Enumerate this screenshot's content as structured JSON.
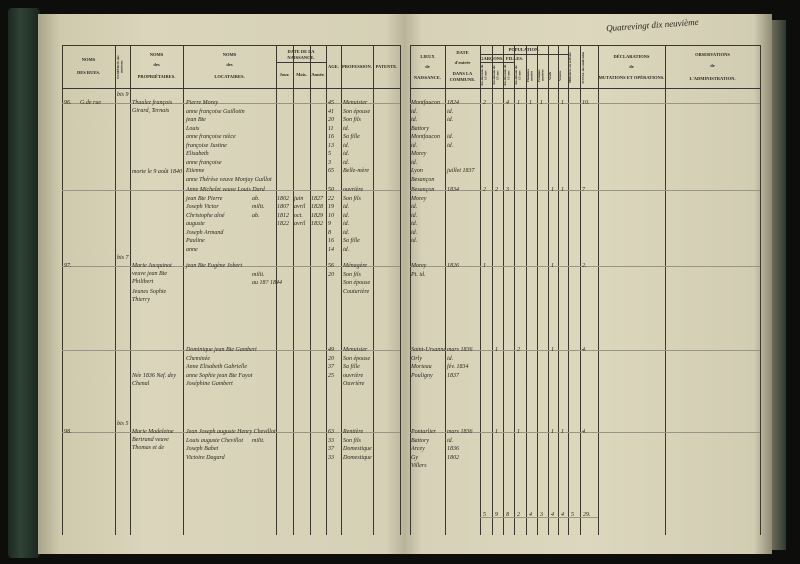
{
  "folio_note": "Quatrevingt dix neuvième",
  "left_headers": {
    "rues": [
      "NOMS",
      "DES RUES."
    ],
    "numeros": "NUMÉROS des maisons.",
    "proprietaires": [
      "NOMS",
      "des",
      "PROPRIÉTAIRES."
    ],
    "locataires": [
      "NOMS",
      "des",
      "LOCATAIRES."
    ],
    "date_naissance": "DATE DE LA NAISSANCE.",
    "jour": "Jour.",
    "mois": "Mois.",
    "annee": "Année.",
    "age": "AGE.",
    "profession": "PROFESSION.",
    "patente": "PATENTE."
  },
  "right_headers": {
    "lieux": [
      "LIEUX",
      "de",
      "NAISSANCE."
    ],
    "date_entree": [
      "DATE",
      "d'entrée",
      "DANS LA COMMUNE."
    ],
    "population": "POPULATION.",
    "garcons": "GARÇONS.",
    "filles": "FILLES.",
    "sub": [
      "Au-dessous de 15 ans",
      "Au-dessus de 15 ans",
      "Au-dessous de 15 ans",
      "Au-dessus de 15 ans",
      "Hommes mariés",
      "Femmes mariées",
      "Veufs",
      "Veuves"
    ],
    "militaires": "Militaires en activité",
    "total": "TOTAL des individus",
    "declarations": [
      "DÉCLARATIONS",
      "de",
      "MUTATIONS ET OPÉRATIONS."
    ],
    "observations": [
      "OBSERVATIONS",
      "de",
      "L'ADMINISTRATION."
    ]
  },
  "entries": [
    {
      "no": "96.",
      "rue": "G.de rue",
      "maison": "bis 9",
      "proprietaire": "Thaulez françois Girard, Ternais",
      "locataires": [
        "Pierre Morey",
        "anne françoise Guillotin",
        "jean Bte",
        "Louis",
        "anne françoise nièce",
        "françoise Justine",
        "Elisabeth",
        "anne françoise",
        "Etienne",
        "anne Thérèse veuve Monjay Guillot"
      ],
      "note": "morte le 9 août 1840",
      "ages": [
        "45",
        "41",
        "20",
        "11",
        "16",
        "13",
        "5",
        "3",
        "65"
      ],
      "professions": [
        "Menuisier",
        "Son épouse",
        "Son fils",
        "id.",
        "Sa fille",
        "id.",
        "id.",
        "id.",
        "Belle-mère"
      ],
      "lieux": [
        "Montfaucon",
        "id.",
        "id.",
        "Battory",
        "Montfaucon",
        "id.",
        "Morey",
        "id.",
        "Lyon",
        "Besançon"
      ],
      "dates": [
        "1824",
        "id.",
        "id.",
        "",
        "id.",
        "id.",
        "",
        "",
        "juillet 1837"
      ],
      "pop": [
        "2",
        "",
        "4",
        "1",
        "1",
        "1",
        "",
        "1"
      ],
      "total": "10."
    },
    {
      "locataires": [
        "Anne Michelet veuve Louis Dard",
        "jean Bte Pierre",
        "Joseph Victor",
        "Christophe aîné",
        "auguste",
        "Joseph Armand",
        "Pauline",
        "anne"
      ],
      "jours": [
        "1802",
        "1807",
        "1812",
        "1822"
      ],
      "mois": [
        "juin",
        "avril",
        "oct.",
        "avril"
      ],
      "annees": [
        "1827",
        "1828",
        "1829",
        "1832"
      ],
      "notes": [
        "ab.",
        "milit.",
        "ab."
      ],
      "ages": [
        "50",
        "22",
        "19",
        "10",
        "9",
        "8",
        "16",
        "14"
      ],
      "professions": [
        "ouvrière",
        "Son fils",
        "id.",
        "id.",
        "id.",
        "id.",
        "Sa fille",
        "id."
      ],
      "lieux": [
        "Besançon",
        "Morey",
        "id.",
        "id.",
        "id.",
        "id.",
        "id."
      ],
      "dates": [
        "1834"
      ],
      "pop": [
        "2",
        "2",
        "3",
        "",
        "",
        "",
        "1",
        "1"
      ],
      "total": "7"
    },
    {
      "no": "97.",
      "maison": "bis 7",
      "proprietaire": "Marie Jacquinot veuve jean Bte Philibert",
      "proprietaire_note": "Jeunes Sophie Thierry",
      "locataires": [
        "jean Bte Eugène Jobert"
      ],
      "notes": [
        "milit.",
        "au 18? 1844"
      ],
      "ages": [
        "56",
        "20"
      ],
      "professions": [
        "Ménagère",
        "Son fils",
        "Son épouse",
        "Couturière"
      ],
      "lieux": [
        "Morey",
        "Pt. id."
      ],
      "dates": [
        "1826"
      ],
      "pop": [
        "1",
        "",
        "",
        "",
        "",
        "",
        "1",
        ""
      ],
      "total": "2."
    },
    {
      "locataires": [
        "Dominique jean Bte Gambert",
        "Cheminée",
        "Anne Elisabeth Gabrielle",
        "anne Sophie jean Bte Fayot",
        "Joséphine Gambert"
      ],
      "note": "Née 1836 Nef. dey Chenal",
      "ages": [
        "49",
        "20",
        "37",
        "25"
      ],
      "professions": [
        "Menuisier",
        "Son épouse",
        "Sa fille",
        "ouvrière",
        "Ouvrière"
      ],
      "lieux": [
        "Saint-Ursanne",
        "Orly",
        "Morteau",
        "Pouligny"
      ],
      "dates": [
        "mars 1836",
        "id.",
        "fév. 1834",
        "1837"
      ],
      "pop": [
        "",
        "1",
        "",
        "2",
        "",
        "",
        "1",
        ""
      ],
      "total": "4."
    },
    {
      "no": "98.",
      "maison": "bis 5",
      "proprietaire": "Marie Madeleine Bertrand veuve Thomas et de",
      "locataires": [
        "Jean Joseph auguste Henry Chevillot",
        "Louis auguste Chevillot",
        "Joseph Babet",
        "Victoire Dagard"
      ],
      "notes": [
        "milit."
      ],
      "ages": [
        "63",
        "33",
        "37",
        "33"
      ],
      "professions": [
        "Rentière",
        "Son fils",
        "Domestique",
        "Domestique"
      ],
      "lieux": [
        "Pontarlier",
        "Battory",
        "Arcey",
        "Gy",
        "Villers"
      ],
      "dates": [
        "mars 1836",
        "id.",
        "1836",
        "1802"
      ],
      "pop": [
        "",
        "1",
        "",
        "1",
        "",
        "",
        "1",
        "1"
      ],
      "total": "4."
    }
  ],
  "page_totals": [
    "5",
    "9",
    "8",
    "2",
    "4",
    "3",
    "4",
    "4",
    "5",
    "29."
  ]
}
